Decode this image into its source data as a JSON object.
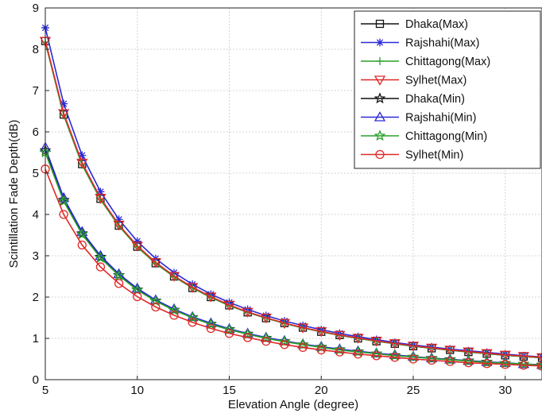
{
  "chart_data": {
    "type": "line",
    "xlabel": "Elevation Angle (degree)",
    "ylabel": "Scintillation Fade Depth(dB)",
    "xlim": [
      5,
      32
    ],
    "ylim": [
      0,
      9
    ],
    "xticks": [
      5,
      10,
      15,
      20,
      25,
      30
    ],
    "yticks": [
      0,
      1,
      2,
      3,
      4,
      5,
      6,
      7,
      8,
      9
    ],
    "grid": true,
    "legend_position": "top-right",
    "x": [
      5,
      6,
      7,
      8,
      9,
      10,
      11,
      12,
      13,
      14,
      15,
      16,
      17,
      18,
      19,
      20,
      21,
      22,
      23,
      24,
      25,
      26,
      27,
      28,
      29,
      30,
      31,
      32
    ],
    "series": [
      {
        "name": "Dhaka(Max)",
        "color": "#111111",
        "marker": "square",
        "values": [
          8.2,
          6.42,
          5.22,
          4.38,
          3.73,
          3.22,
          2.82,
          2.5,
          2.22,
          2.0,
          1.8,
          1.63,
          1.49,
          1.37,
          1.26,
          1.16,
          1.08,
          1.0,
          0.93,
          0.87,
          0.81,
          0.76,
          0.72,
          0.67,
          0.63,
          0.59,
          0.56,
          0.53
        ]
      },
      {
        "name": "Rajshahi(Max)",
        "color": "#2a2ad6",
        "marker": "asterisk",
        "values": [
          8.52,
          6.68,
          5.43,
          4.55,
          3.88,
          3.35,
          2.93,
          2.59,
          2.31,
          2.07,
          1.87,
          1.7,
          1.55,
          1.42,
          1.31,
          1.21,
          1.12,
          1.04,
          0.97,
          0.9,
          0.84,
          0.79,
          0.74,
          0.7,
          0.66,
          0.62,
          0.58,
          0.55
        ]
      },
      {
        "name": "Chittagong(Max)",
        "color": "#2ba02b",
        "marker": "plus",
        "values": [
          8.17,
          6.4,
          5.2,
          4.36,
          3.72,
          3.21,
          2.81,
          2.49,
          2.22,
          1.99,
          1.79,
          1.63,
          1.49,
          1.36,
          1.25,
          1.16,
          1.07,
          1.0,
          0.93,
          0.87,
          0.81,
          0.76,
          0.71,
          0.67,
          0.63,
          0.59,
          0.56,
          0.53
        ]
      },
      {
        "name": "Sylhet(Max)",
        "color": "#e02828",
        "marker": "triangle-down",
        "values": [
          8.2,
          6.45,
          5.25,
          4.4,
          3.75,
          3.24,
          2.84,
          2.51,
          2.24,
          2.01,
          1.81,
          1.64,
          1.5,
          1.37,
          1.26,
          1.17,
          1.08,
          1.01,
          0.94,
          0.88,
          0.82,
          0.77,
          0.72,
          0.68,
          0.64,
          0.6,
          0.57,
          0.54
        ]
      },
      {
        "name": "Dhaka(Min)",
        "color": "#111111",
        "marker": "star",
        "values": [
          5.55,
          4.35,
          3.54,
          2.97,
          2.53,
          2.18,
          1.91,
          1.69,
          1.51,
          1.35,
          1.22,
          1.11,
          1.01,
          0.93,
          0.85,
          0.79,
          0.73,
          0.68,
          0.63,
          0.59,
          0.55,
          0.52,
          0.49,
          0.46,
          0.43,
          0.4,
          0.38,
          0.36
        ]
      },
      {
        "name": "Rajshahi(Min)",
        "color": "#2a2ad6",
        "marker": "triangle-up",
        "values": [
          5.62,
          4.4,
          3.58,
          3.0,
          2.56,
          2.21,
          1.93,
          1.71,
          1.52,
          1.37,
          1.23,
          1.12,
          1.02,
          0.94,
          0.86,
          0.8,
          0.74,
          0.69,
          0.64,
          0.6,
          0.56,
          0.52,
          0.49,
          0.46,
          0.43,
          0.41,
          0.38,
          0.36
        ]
      },
      {
        "name": "Chittagong(Min)",
        "color": "#2ba02b",
        "marker": "star",
        "values": [
          5.5,
          4.32,
          3.52,
          2.95,
          2.52,
          2.17,
          1.9,
          1.68,
          1.5,
          1.34,
          1.21,
          1.1,
          1.0,
          0.92,
          0.85,
          0.78,
          0.72,
          0.67,
          0.63,
          0.58,
          0.55,
          0.51,
          0.48,
          0.45,
          0.42,
          0.4,
          0.38,
          0.35
        ]
      },
      {
        "name": "Sylhet(Min)",
        "color": "#e02828",
        "marker": "circle",
        "values": [
          5.1,
          4.0,
          3.26,
          2.73,
          2.33,
          2.01,
          1.76,
          1.56,
          1.39,
          1.24,
          1.12,
          1.02,
          0.93,
          0.85,
          0.78,
          0.72,
          0.67,
          0.62,
          0.58,
          0.54,
          0.5,
          0.47,
          0.44,
          0.41,
          0.39,
          0.37,
          0.35,
          0.33
        ]
      }
    ]
  }
}
